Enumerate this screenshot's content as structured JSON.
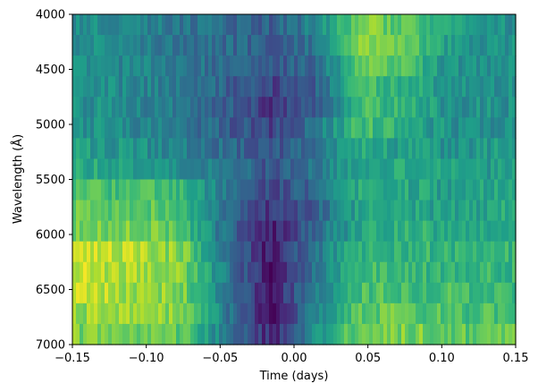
{
  "chart_data": {
    "type": "heatmap",
    "title": "",
    "xlabel": "Time (days)",
    "ylabel": "Wavelength (Å)",
    "xlim": [
      -0.15,
      0.15
    ],
    "ylim": [
      7000,
      4000
    ],
    "y_inverted": true,
    "colormap": "viridis",
    "x_ticks": [
      -0.15,
      -0.1,
      -0.05,
      0.0,
      0.05,
      0.1,
      0.15
    ],
    "x_tick_labels": [
      "−0.15",
      "−0.10",
      "−0.05",
      "0.00",
      "0.05",
      "0.10",
      "0.15"
    ],
    "y_ticks": [
      4000,
      4500,
      5000,
      5500,
      6000,
      6500,
      7000
    ],
    "y_tick_labels": [
      "4000",
      "4500",
      "5000",
      "5500",
      "6000",
      "6500",
      "7000"
    ],
    "grid": false,
    "wavelength_bin_edges": [
      4000,
      4187.5,
      4375,
      4562.5,
      4750,
      4937.5,
      5125,
      5312.5,
      5500,
      5687.5,
      5875,
      6062.5,
      6250,
      6437.5,
      6625,
      6812.5,
      7000
    ],
    "time_bin_centers": [
      -0.135,
      -0.105,
      -0.075,
      -0.045,
      -0.015,
      0.015,
      0.045,
      0.075,
      0.105,
      0.135
    ],
    "relative_flux_0_to_1": [
      [
        0.5,
        0.45,
        0.4,
        0.35,
        0.3,
        0.45,
        0.8,
        0.75,
        0.55,
        0.5
      ],
      [
        0.5,
        0.45,
        0.4,
        0.35,
        0.3,
        0.4,
        0.85,
        0.8,
        0.55,
        0.5
      ],
      [
        0.5,
        0.45,
        0.4,
        0.35,
        0.25,
        0.35,
        0.75,
        0.7,
        0.5,
        0.5
      ],
      [
        0.5,
        0.45,
        0.4,
        0.3,
        0.2,
        0.3,
        0.7,
        0.65,
        0.5,
        0.5
      ],
      [
        0.5,
        0.45,
        0.4,
        0.3,
        0.15,
        0.3,
        0.7,
        0.65,
        0.5,
        0.5
      ],
      [
        0.5,
        0.45,
        0.4,
        0.3,
        0.2,
        0.4,
        0.7,
        0.6,
        0.5,
        0.5
      ],
      [
        0.55,
        0.5,
        0.45,
        0.35,
        0.25,
        0.4,
        0.6,
        0.55,
        0.5,
        0.55
      ],
      [
        0.6,
        0.55,
        0.5,
        0.4,
        0.25,
        0.4,
        0.6,
        0.6,
        0.55,
        0.55
      ],
      [
        0.7,
        0.7,
        0.65,
        0.4,
        0.2,
        0.35,
        0.6,
        0.6,
        0.55,
        0.6
      ],
      [
        0.75,
        0.75,
        0.7,
        0.35,
        0.15,
        0.3,
        0.6,
        0.6,
        0.55,
        0.6
      ],
      [
        0.8,
        0.8,
        0.7,
        0.35,
        0.1,
        0.35,
        0.6,
        0.65,
        0.6,
        0.6
      ],
      [
        0.9,
        0.9,
        0.8,
        0.4,
        0.05,
        0.4,
        0.65,
        0.65,
        0.65,
        0.65
      ],
      [
        0.9,
        0.85,
        0.8,
        0.4,
        0.05,
        0.4,
        0.7,
        0.65,
        0.65,
        0.65
      ],
      [
        0.9,
        0.85,
        0.8,
        0.4,
        0.05,
        0.45,
        0.7,
        0.7,
        0.7,
        0.65
      ],
      [
        0.85,
        0.85,
        0.8,
        0.4,
        0.05,
        0.45,
        0.75,
        0.75,
        0.7,
        0.7
      ],
      [
        0.8,
        0.8,
        0.75,
        0.4,
        0.1,
        0.5,
        0.8,
        0.8,
        0.75,
        0.75
      ]
    ]
  }
}
